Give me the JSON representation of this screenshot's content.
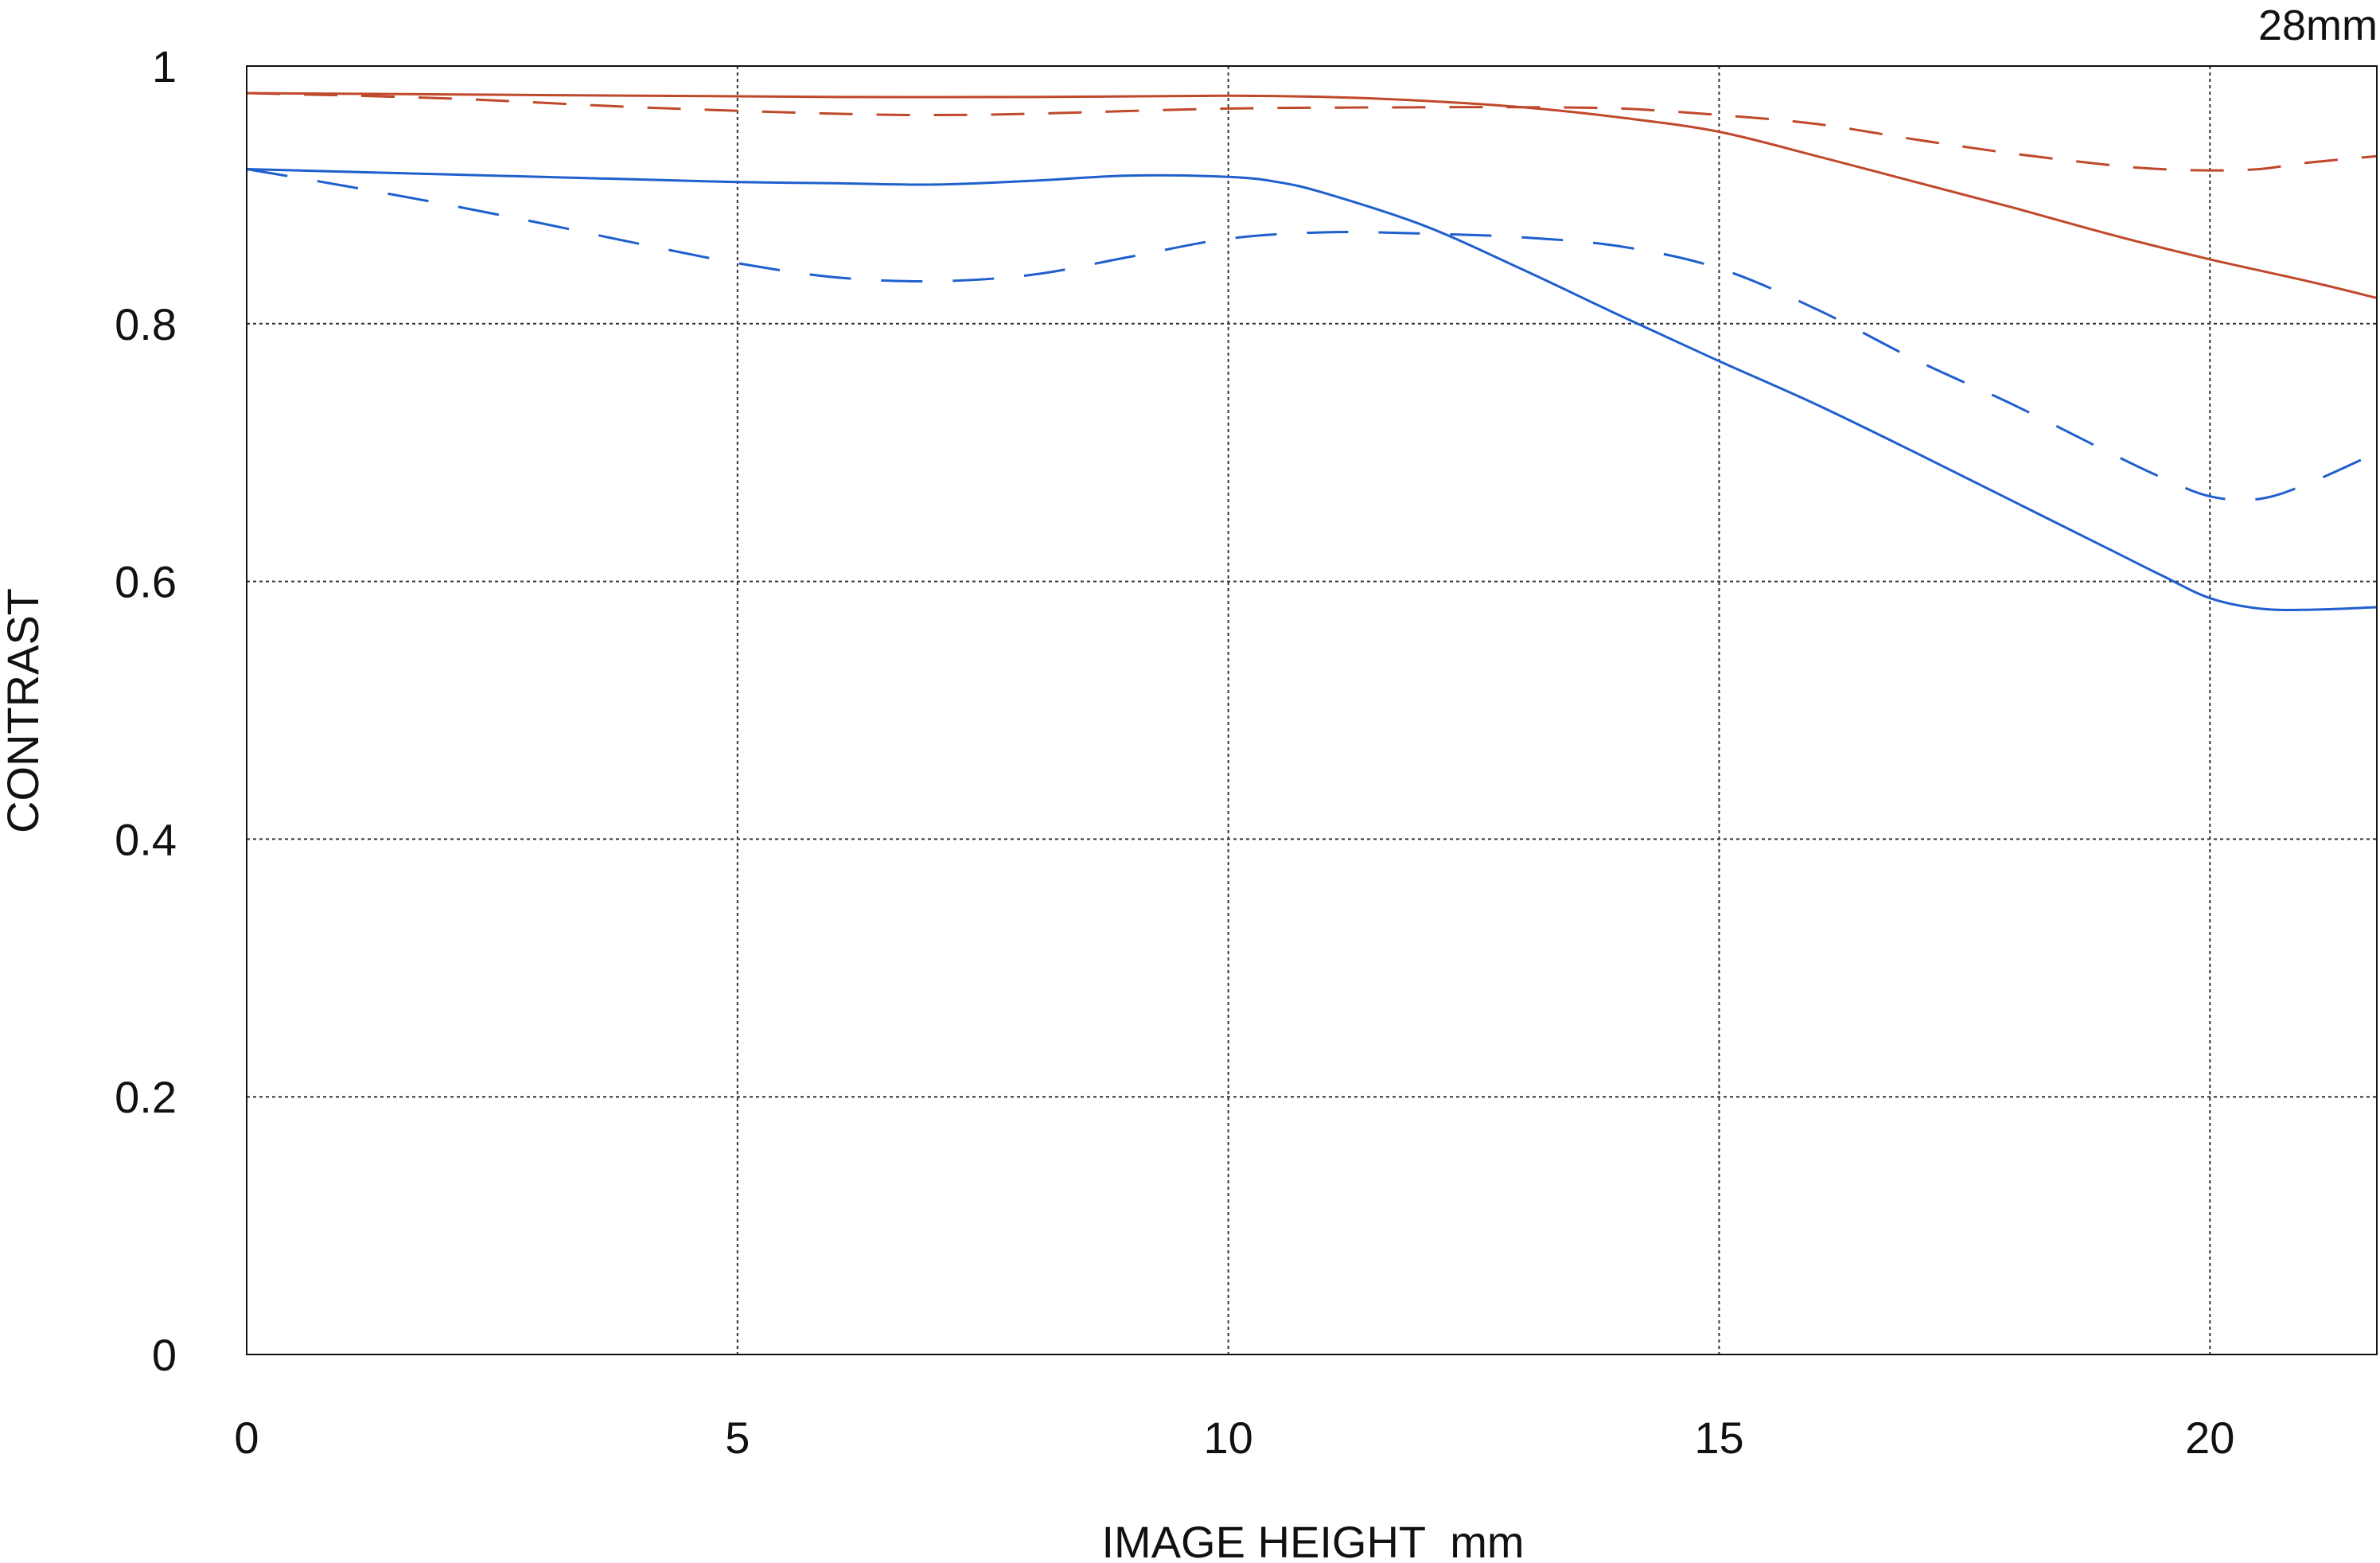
{
  "chart_data": {
    "type": "line",
    "corner_label": "28mm",
    "xlabel": "IMAGE HEIGHT  mm",
    "ylabel": "CONTRAST",
    "xlim": [
      0,
      21.7
    ],
    "ylim": [
      0,
      1
    ],
    "x_ticks": [
      0,
      5,
      10,
      15,
      20
    ],
    "x_tick_labels": [
      "0",
      "5",
      "10",
      "15",
      "20"
    ],
    "y_ticks": [
      0,
      0.2,
      0.4,
      0.6,
      0.8,
      1
    ],
    "y_tick_labels": [
      "0",
      "0.2",
      "0.4",
      "0.6",
      "0.8",
      "1"
    ],
    "grid": true,
    "series": [
      {
        "color": "#c0482b",
        "style": "solid",
        "x": [
          0,
          2,
          4,
          6,
          8,
          10,
          11,
          12,
          13,
          14,
          15,
          16,
          17,
          18,
          19,
          20,
          21,
          21.7
        ],
        "y": [
          0.979,
          0.978,
          0.977,
          0.976,
          0.976,
          0.977,
          0.976,
          0.973,
          0.968,
          0.96,
          0.949,
          0.93,
          0.91,
          0.89,
          0.869,
          0.85,
          0.833,
          0.82
        ]
      },
      {
        "color": "#c0482b",
        "style": "dashed",
        "x": [
          0,
          2,
          4,
          6,
          7,
          8,
          10,
          12,
          13,
          14,
          15,
          16,
          17,
          18,
          19,
          19.5,
          20,
          20.5,
          21,
          21.7
        ],
        "y": [
          0.979,
          0.975,
          0.968,
          0.963,
          0.962,
          0.963,
          0.967,
          0.968,
          0.968,
          0.967,
          0.962,
          0.955,
          0.943,
          0.932,
          0.923,
          0.92,
          0.919,
          0.92,
          0.925,
          0.93
        ]
      },
      {
        "color": "#1f5fce",
        "style": "solid",
        "x": [
          0,
          2,
          4,
          5,
          6,
          7,
          8,
          9,
          10,
          10.5,
          11,
          12,
          13,
          14,
          15,
          16,
          17,
          18,
          19,
          19.5,
          20,
          20.5,
          21,
          21.7
        ],
        "y": [
          0.92,
          0.916,
          0.912,
          0.91,
          0.909,
          0.908,
          0.911,
          0.915,
          0.914,
          0.91,
          0.901,
          0.876,
          0.842,
          0.806,
          0.771,
          0.737,
          0.7,
          0.662,
          0.624,
          0.605,
          0.587,
          0.579,
          0.578,
          0.58
        ]
      },
      {
        "color": "#1f5fce",
        "style": "dashed",
        "x": [
          0,
          1,
          2,
          3,
          4,
          5,
          6,
          7,
          8,
          9,
          10,
          11,
          12,
          13,
          14,
          15,
          16,
          17,
          18,
          19,
          19.5,
          20,
          20.5,
          21,
          21.7
        ],
        "y": [
          0.92,
          0.907,
          0.893,
          0.878,
          0.862,
          0.847,
          0.836,
          0.833,
          0.838,
          0.852,
          0.866,
          0.871,
          0.87,
          0.867,
          0.86,
          0.843,
          0.811,
          0.772,
          0.737,
          0.699,
          0.681,
          0.666,
          0.664,
          0.676,
          0.7
        ]
      }
    ]
  }
}
